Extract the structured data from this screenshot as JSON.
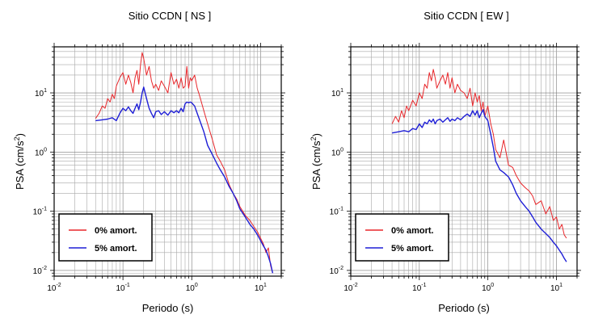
{
  "chart_data": [
    {
      "type": "line",
      "title": "Sitio CCDN [ NS ]",
      "xlabel": "Periodo (s)",
      "ylabel": "PSA (cm/s",
      "ylabel_sup": "2",
      "ylabel_close": ")",
      "xscale": "log",
      "yscale": "log",
      "xlim": [
        0.01,
        20
      ],
      "ylim": [
        0.008,
        60
      ],
      "grid": true,
      "legend_position": "bottom-left",
      "x_tick_labels": [
        {
          "base": "10",
          "exp": "-2",
          "value": 0.01
        },
        {
          "base": "10",
          "exp": "-1",
          "value": 0.1
        },
        {
          "base": "10",
          "exp": "0",
          "value": 1
        },
        {
          "base": "10",
          "exp": "1",
          "value": 10
        }
      ],
      "y_tick_labels": [
        {
          "base": "10",
          "exp": "-2",
          "value": 0.01
        },
        {
          "base": "10",
          "exp": "-1",
          "value": 0.1
        },
        {
          "base": "10",
          "exp": "0",
          "value": 1
        },
        {
          "base": "10",
          "exp": "1",
          "value": 10
        }
      ],
      "series": [
        {
          "name": "0% amort.",
          "color": "#e8262a",
          "x": [
            0.04,
            0.045,
            0.05,
            0.055,
            0.06,
            0.065,
            0.07,
            0.075,
            0.08,
            0.09,
            0.1,
            0.11,
            0.12,
            0.13,
            0.14,
            0.15,
            0.16,
            0.17,
            0.18,
            0.19,
            0.2,
            0.22,
            0.24,
            0.26,
            0.28,
            0.3,
            0.33,
            0.36,
            0.4,
            0.45,
            0.5,
            0.55,
            0.6,
            0.65,
            0.7,
            0.75,
            0.8,
            0.85,
            0.9,
            0.95,
            1.0,
            1.1,
            1.2,
            1.3,
            1.5,
            1.7,
            2.0,
            2.3,
            2.6,
            3.0,
            3.5,
            4.0,
            4.5,
            5.0,
            6.0,
            7.0,
            8.0,
            9.0,
            10.0,
            11.0,
            12.0,
            13.0,
            14.0,
            15.0
          ],
          "y": [
            3.7,
            4.5,
            6.0,
            5.5,
            8.0,
            7.0,
            9.5,
            8.0,
            13.0,
            18.0,
            22.0,
            14.0,
            20.0,
            15.0,
            10.0,
            18.0,
            24.0,
            14.0,
            30.0,
            48.0,
            38.0,
            20.0,
            28.0,
            16.0,
            12.0,
            14.0,
            11.0,
            16.0,
            13.0,
            10.0,
            22.0,
            14.0,
            17.0,
            12.0,
            18.0,
            12.0,
            13.0,
            28.0,
            12.0,
            18.0,
            16.0,
            20.0,
            12.0,
            9.0,
            5.0,
            3.0,
            1.6,
            0.9,
            0.7,
            0.5,
            0.28,
            0.2,
            0.16,
            0.12,
            0.085,
            0.07,
            0.055,
            0.045,
            0.035,
            0.028,
            0.02,
            0.024,
            0.012,
            0.009
          ]
        },
        {
          "name": "5% amort.",
          "color": "#1f1fd6",
          "x": [
            0.04,
            0.05,
            0.06,
            0.07,
            0.08,
            0.09,
            0.1,
            0.11,
            0.12,
            0.13,
            0.14,
            0.15,
            0.16,
            0.17,
            0.18,
            0.19,
            0.2,
            0.22,
            0.24,
            0.26,
            0.28,
            0.3,
            0.33,
            0.36,
            0.4,
            0.45,
            0.5,
            0.55,
            0.6,
            0.65,
            0.7,
            0.75,
            0.8,
            0.85,
            0.9,
            0.95,
            1.0,
            1.1,
            1.2,
            1.3,
            1.5,
            1.7,
            2.0,
            2.3,
            2.6,
            3.0,
            3.5,
            4.0,
            4.5,
            5.0,
            6.0,
            7.0,
            8.0,
            9.0,
            10.0,
            11.0,
            12.0,
            13.0,
            14.0,
            15.0
          ],
          "y": [
            3.4,
            3.5,
            3.6,
            3.8,
            3.4,
            4.5,
            5.5,
            5.0,
            5.8,
            5.0,
            4.5,
            5.5,
            6.5,
            5.2,
            7.0,
            10.0,
            12.5,
            8.0,
            5.5,
            4.5,
            3.8,
            4.8,
            5.0,
            4.3,
            4.8,
            4.2,
            5.0,
            4.6,
            5.0,
            4.6,
            5.5,
            4.8,
            6.5,
            7.0,
            6.8,
            7.0,
            6.8,
            6.0,
            4.5,
            3.5,
            2.2,
            1.3,
            0.9,
            0.65,
            0.5,
            0.38,
            0.26,
            0.2,
            0.15,
            0.11,
            0.08,
            0.06,
            0.05,
            0.04,
            0.032,
            0.026,
            0.022,
            0.017,
            0.013,
            0.009
          ]
        }
      ]
    },
    {
      "type": "line",
      "title": "Sitio CCDN [ EW ]",
      "xlabel": "Periodo (s)",
      "ylabel": "PSA (cm/s",
      "ylabel_sup": "2",
      "ylabel_close": ")",
      "xscale": "log",
      "yscale": "log",
      "xlim": [
        0.01,
        20
      ],
      "ylim": [
        0.008,
        60
      ],
      "grid": true,
      "legend_position": "bottom-left",
      "x_tick_labels": [
        {
          "base": "10",
          "exp": "-2",
          "value": 0.01
        },
        {
          "base": "10",
          "exp": "-1",
          "value": 0.1
        },
        {
          "base": "10",
          "exp": "0",
          "value": 1
        },
        {
          "base": "10",
          "exp": "1",
          "value": 10
        }
      ],
      "y_tick_labels": [
        {
          "base": "10",
          "exp": "-2",
          "value": 0.01
        },
        {
          "base": "10",
          "exp": "-1",
          "value": 0.1
        },
        {
          "base": "10",
          "exp": "0",
          "value": 1
        },
        {
          "base": "10",
          "exp": "1",
          "value": 10
        }
      ],
      "series": [
        {
          "name": "0% amort.",
          "color": "#e8262a",
          "x": [
            0.04,
            0.045,
            0.05,
            0.055,
            0.06,
            0.065,
            0.07,
            0.08,
            0.09,
            0.1,
            0.11,
            0.12,
            0.13,
            0.14,
            0.15,
            0.16,
            0.17,
            0.18,
            0.2,
            0.22,
            0.24,
            0.26,
            0.28,
            0.3,
            0.33,
            0.36,
            0.4,
            0.45,
            0.5,
            0.55,
            0.6,
            0.65,
            0.7,
            0.75,
            0.8,
            0.85,
            0.9,
            1.0,
            1.1,
            1.2,
            1.3,
            1.5,
            1.7,
            2.0,
            2.3,
            2.6,
            3.0,
            3.5,
            4.0,
            4.5,
            5.0,
            6.0,
            7.0,
            8.0,
            9.0,
            10.0,
            11.0,
            12.0,
            13.0,
            14.0
          ],
          "y": [
            3.0,
            4.0,
            3.2,
            5.0,
            3.8,
            6.0,
            5.0,
            7.5,
            6.0,
            10.0,
            8.0,
            14.0,
            12.0,
            22.0,
            16.0,
            25.0,
            18.0,
            12.0,
            16.0,
            20.0,
            14.0,
            22.0,
            12.0,
            18.0,
            10.0,
            14.0,
            11.0,
            10.0,
            8.0,
            12.0,
            6.0,
            10.0,
            7.0,
            9.0,
            5.0,
            7.0,
            4.0,
            6.0,
            3.0,
            2.0,
            1.1,
            0.8,
            1.6,
            0.6,
            0.55,
            0.4,
            0.3,
            0.25,
            0.22,
            0.18,
            0.13,
            0.15,
            0.09,
            0.12,
            0.07,
            0.08,
            0.05,
            0.06,
            0.04,
            0.035
          ]
        },
        {
          "name": "5% amort.",
          "color": "#1f1fd6",
          "x": [
            0.04,
            0.05,
            0.06,
            0.07,
            0.08,
            0.09,
            0.1,
            0.11,
            0.12,
            0.13,
            0.14,
            0.15,
            0.16,
            0.17,
            0.18,
            0.2,
            0.22,
            0.24,
            0.26,
            0.28,
            0.3,
            0.33,
            0.36,
            0.4,
            0.45,
            0.5,
            0.55,
            0.6,
            0.65,
            0.7,
            0.75,
            0.8,
            0.85,
            0.9,
            1.0,
            1.1,
            1.2,
            1.3,
            1.5,
            1.7,
            2.0,
            2.3,
            2.6,
            3.0,
            3.5,
            4.0,
            4.5,
            5.0,
            6.0,
            7.0,
            8.0,
            9.0,
            10.0,
            11.0,
            12.0,
            13.0,
            14.0
          ],
          "y": [
            2.1,
            2.2,
            2.3,
            2.2,
            2.5,
            2.4,
            3.0,
            2.6,
            3.2,
            3.0,
            3.5,
            3.2,
            3.6,
            3.0,
            3.4,
            3.6,
            3.2,
            3.5,
            3.8,
            3.3,
            3.6,
            3.4,
            3.8,
            3.5,
            4.0,
            4.4,
            4.0,
            5.0,
            4.2,
            5.0,
            3.8,
            4.5,
            5.2,
            4.0,
            3.4,
            2.0,
            1.2,
            0.7,
            0.5,
            0.45,
            0.38,
            0.28,
            0.2,
            0.15,
            0.12,
            0.1,
            0.08,
            0.065,
            0.05,
            0.042,
            0.036,
            0.03,
            0.026,
            0.022,
            0.019,
            0.016,
            0.014
          ]
        }
      ]
    }
  ]
}
